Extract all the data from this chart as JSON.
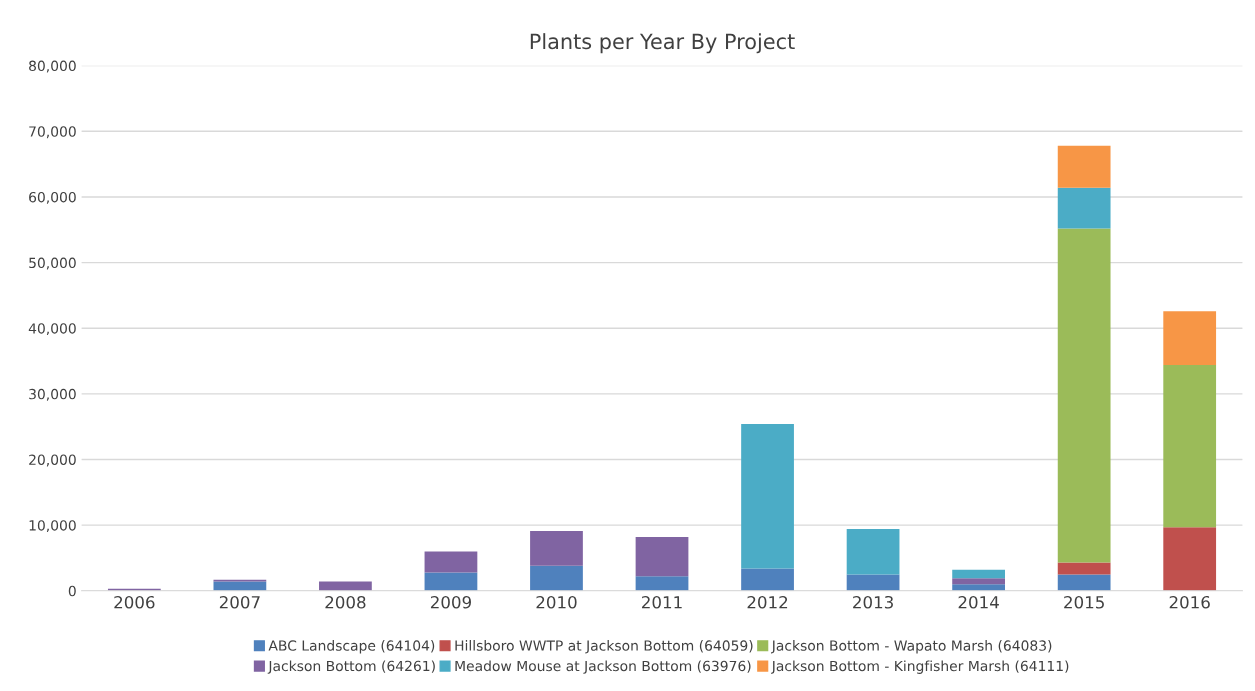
{
  "chart_data": {
    "type": "bar",
    "title": "Plants per Year By Project",
    "stacked": true,
    "categories": [
      "2006",
      "2007",
      "2008",
      "2009",
      "2010",
      "2011",
      "2012",
      "2013",
      "2014",
      "2015",
      "2016"
    ],
    "series": [
      {
        "name": "ABC Landscape (64104)",
        "color": "#4f81bd",
        "values": [
          null,
          1400,
          null,
          2800,
          3800,
          2200,
          3400,
          2500,
          1000,
          2500,
          null
        ]
      },
      {
        "name": "Hillsboro WWTP at Jackson Bottom (64059)",
        "color": "#c0504d",
        "values": [
          null,
          null,
          null,
          null,
          null,
          null,
          null,
          null,
          null,
          1800,
          9700
        ]
      },
      {
        "name": "Jackson Bottom - Wapato Marsh (64083)",
        "color": "#9bbb59",
        "values": [
          null,
          null,
          null,
          null,
          null,
          null,
          null,
          null,
          null,
          50900,
          24700
        ]
      },
      {
        "name": "Jackson Bottom (64261)",
        "color": "#8064a2",
        "values": [
          300,
          300,
          1400,
          3200,
          5300,
          6000,
          null,
          null,
          900,
          null,
          null
        ]
      },
      {
        "name": "Meadow Mouse at Jackson Bottom (63976)",
        "color": "#4bacc6",
        "values": [
          null,
          null,
          null,
          null,
          null,
          null,
          22000,
          6900,
          1300,
          6200,
          null
        ]
      },
      {
        "name": "Jackson Bottom - Kingfisher Marsh (64111)",
        "color": "#f79646",
        "values": [
          null,
          null,
          null,
          null,
          null,
          null,
          null,
          null,
          null,
          6400,
          8200
        ]
      }
    ],
    "ylim": [
      0,
      80000
    ],
    "yticks": [
      {
        "value": 0,
        "label": "0"
      },
      {
        "value": 10000,
        "label": "10,000"
      },
      {
        "value": 20000,
        "label": "20,000"
      },
      {
        "value": 30000,
        "label": "30,000"
      },
      {
        "value": 40000,
        "label": "40,000"
      },
      {
        "value": 50000,
        "label": "50,000"
      },
      {
        "value": 60000,
        "label": "60,000"
      },
      {
        "value": 70000,
        "label": "70,000"
      },
      {
        "value": 80000,
        "label": "80,000"
      }
    ],
    "grid": "y",
    "legend": "bottom"
  }
}
